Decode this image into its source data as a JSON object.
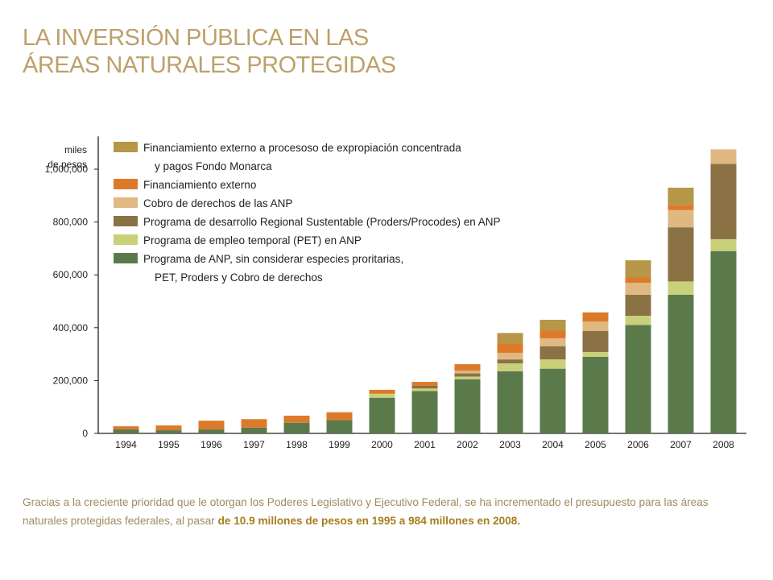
{
  "title_lines": [
    "LA INVERSIÓN PÚBLICA EN LAS",
    "ÁREAS NATURALES PROTEGIDAS"
  ],
  "caption": {
    "text": "Gracias a la creciente prioridad que le otorgan los Poderes Legislativo y Ejecutivo Federal, se ha incrementado el presupuesto para las áreas naturales protegidas federales, al pasar ",
    "bold": "de 10.9 millones de pesos en 1995 a 984 millones en 2008."
  },
  "chart_data": {
    "type": "bar",
    "stacked": true,
    "ylabel": [
      "miles",
      "de pesos"
    ],
    "ylim": [
      0,
      1100000
    ],
    "yticks": [
      0,
      200000,
      400000,
      600000,
      800000,
      1000000
    ],
    "ytick_labels": [
      "0",
      "200,000",
      "400,000",
      "600,000",
      "800,000",
      "1,000,000"
    ],
    "grid": false,
    "legend_position": "top-left",
    "categories": [
      "1994",
      "1995",
      "1996",
      "1997",
      "1998",
      "1999",
      "2000",
      "2001",
      "2002",
      "2003",
      "2004",
      "2005",
      "2006",
      "2007",
      "2008"
    ],
    "series": [
      {
        "name": "Programa de ANP, sin considerar especies proritarias, PET, Proders y Cobro de derechos",
        "legend_lines": [
          "Programa de ANP, sin considerar especies proritarias,",
          "PET, Proders y Cobro de derechos"
        ],
        "color": "#5b7a4c",
        "values": [
          15000,
          12000,
          15000,
          22000,
          40000,
          50000,
          135000,
          160000,
          205000,
          235000,
          245000,
          290000,
          410000,
          525000,
          690000
        ]
      },
      {
        "name": "Programa de empleo temporal (PET) en ANP",
        "legend_lines": [
          "Programa de empleo temporal (PET) en ANP"
        ],
        "color": "#c9d07a",
        "values": [
          0,
          0,
          0,
          0,
          0,
          0,
          15000,
          10000,
          10000,
          30000,
          35000,
          18000,
          35000,
          50000,
          45000
        ]
      },
      {
        "name": "Programa de desarrollo Regional Sustentable (Proders/Procodes) en ANP",
        "legend_lines": [
          "Programa de desarrollo Regional Sustentable (Proders/Procodes) en ANP"
        ],
        "color": "#8a7245",
        "values": [
          0,
          0,
          0,
          0,
          0,
          0,
          0,
          10000,
          12000,
          15000,
          50000,
          80000,
          80000,
          205000,
          285000
        ]
      },
      {
        "name": "Cobro de derechos de las ANP",
        "legend_lines": [
          "Cobro de derechos de las ANP"
        ],
        "color": "#dfb882",
        "values": [
          0,
          0,
          0,
          0,
          0,
          0,
          0,
          0,
          10000,
          25000,
          30000,
          35000,
          45000,
          65000,
          55000
        ]
      },
      {
        "name": "Financiamiento externo",
        "legend_lines": [
          "Financiamiento externo"
        ],
        "color": "#dd7a2a",
        "values": [
          12000,
          18000,
          33000,
          32000,
          27000,
          30000,
          15000,
          15000,
          25000,
          35000,
          30000,
          35000,
          20000,
          20000,
          0
        ]
      },
      {
        "name": "Financiamiento externo a procesoso de expropiación concentrada y pagos Fondo Monarca",
        "legend_lines": [
          "Financiamiento externo a procesoso de expropiación concentrada",
          "y pagos Fondo Monarca"
        ],
        "color": "#b69647",
        "values": [
          0,
          0,
          0,
          0,
          0,
          0,
          0,
          0,
          0,
          40000,
          40000,
          0,
          65000,
          65000,
          0
        ]
      }
    ],
    "legend_order": [
      5,
      4,
      3,
      2,
      1,
      0
    ]
  }
}
